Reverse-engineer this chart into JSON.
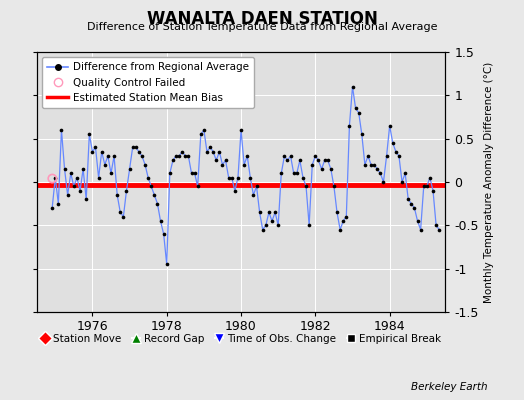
{
  "title": "WANALTA DAEN STATION",
  "subtitle": "Difference of Station Temperature Data from Regional Average",
  "ylabel": "Monthly Temperature Anomaly Difference (°C)",
  "ylim": [
    -1.5,
    1.5
  ],
  "xlim": [
    1974.5,
    1985.5
  ],
  "xticks": [
    1976,
    1978,
    1980,
    1982,
    1984
  ],
  "yticks": [
    -1.5,
    -1.0,
    -0.5,
    0.0,
    0.5,
    1.0,
    1.5
  ],
  "yticklabels": [
    "-1.5",
    "-1",
    "-0.5",
    "0",
    "0.5",
    "1",
    "1.5"
  ],
  "bias_y": -0.03,
  "line_color": "#6688ff",
  "dot_color": "#000000",
  "bias_color": "#ff0000",
  "background_color": "#e0e0e0",
  "fig_background": "#e8e8e8",
  "qc_x": [
    1974.92
  ],
  "qc_y": [
    0.04
  ],
  "times": [
    1974.917,
    1975.0,
    1975.083,
    1975.167,
    1975.25,
    1975.333,
    1975.417,
    1975.5,
    1975.583,
    1975.667,
    1975.75,
    1975.833,
    1975.917,
    1976.0,
    1976.083,
    1976.167,
    1976.25,
    1976.333,
    1976.417,
    1976.5,
    1976.583,
    1976.667,
    1976.75,
    1976.833,
    1976.917,
    1977.0,
    1977.083,
    1977.167,
    1977.25,
    1977.333,
    1977.417,
    1977.5,
    1977.583,
    1977.667,
    1977.75,
    1977.833,
    1977.917,
    1978.0,
    1978.083,
    1978.167,
    1978.25,
    1978.333,
    1978.417,
    1978.5,
    1978.583,
    1978.667,
    1978.75,
    1978.833,
    1978.917,
    1979.0,
    1979.083,
    1979.167,
    1979.25,
    1979.333,
    1979.417,
    1979.5,
    1979.583,
    1979.667,
    1979.75,
    1979.833,
    1979.917,
    1980.0,
    1980.083,
    1980.167,
    1980.25,
    1980.333,
    1980.417,
    1980.5,
    1980.583,
    1980.667,
    1980.75,
    1980.833,
    1980.917,
    1981.0,
    1981.083,
    1981.167,
    1981.25,
    1981.333,
    1981.417,
    1981.5,
    1981.583,
    1981.667,
    1981.75,
    1981.833,
    1981.917,
    1982.0,
    1982.083,
    1982.167,
    1982.25,
    1982.333,
    1982.417,
    1982.5,
    1982.583,
    1982.667,
    1982.75,
    1982.833,
    1982.917,
    1983.0,
    1983.083,
    1983.167,
    1983.25,
    1983.333,
    1983.417,
    1983.5,
    1983.583,
    1983.667,
    1983.75,
    1983.833,
    1983.917,
    1984.0,
    1984.083,
    1984.167,
    1984.25,
    1984.333,
    1984.417,
    1984.5,
    1984.583,
    1984.667,
    1984.75,
    1984.833,
    1984.917,
    1985.0,
    1985.083,
    1985.167,
    1985.25,
    1985.333
  ],
  "values": [
    -0.3,
    0.05,
    -0.25,
    0.6,
    0.15,
    -0.15,
    0.1,
    -0.05,
    0.05,
    -0.1,
    0.15,
    -0.2,
    0.55,
    0.35,
    0.4,
    0.05,
    0.35,
    0.2,
    0.3,
    0.1,
    0.3,
    -0.15,
    -0.35,
    -0.4,
    -0.1,
    0.15,
    0.4,
    0.4,
    0.35,
    0.3,
    0.2,
    0.05,
    -0.05,
    -0.15,
    -0.25,
    -0.45,
    -0.6,
    -0.95,
    0.1,
    0.25,
    0.3,
    0.3,
    0.35,
    0.3,
    0.3,
    0.1,
    0.1,
    -0.05,
    0.55,
    0.6,
    0.35,
    0.4,
    0.35,
    0.25,
    0.35,
    0.2,
    0.25,
    0.05,
    0.05,
    -0.1,
    0.05,
    0.6,
    0.2,
    0.3,
    0.05,
    -0.15,
    -0.05,
    -0.35,
    -0.55,
    -0.5,
    -0.35,
    -0.45,
    -0.35,
    -0.5,
    0.1,
    0.3,
    0.25,
    0.3,
    0.1,
    0.1,
    0.25,
    0.05,
    -0.05,
    -0.5,
    0.2,
    0.3,
    0.25,
    0.15,
    0.25,
    0.25,
    0.15,
    -0.05,
    -0.35,
    -0.55,
    -0.45,
    -0.4,
    0.65,
    1.1,
    0.85,
    0.8,
    0.55,
    0.2,
    0.3,
    0.2,
    0.2,
    0.15,
    0.1,
    0.0,
    0.3,
    0.65,
    0.45,
    0.35,
    0.3,
    0.0,
    0.1,
    -0.2,
    -0.25,
    -0.3,
    -0.45,
    -0.55,
    -0.05,
    -0.05,
    0.05,
    -0.1,
    -0.5,
    -0.55
  ]
}
